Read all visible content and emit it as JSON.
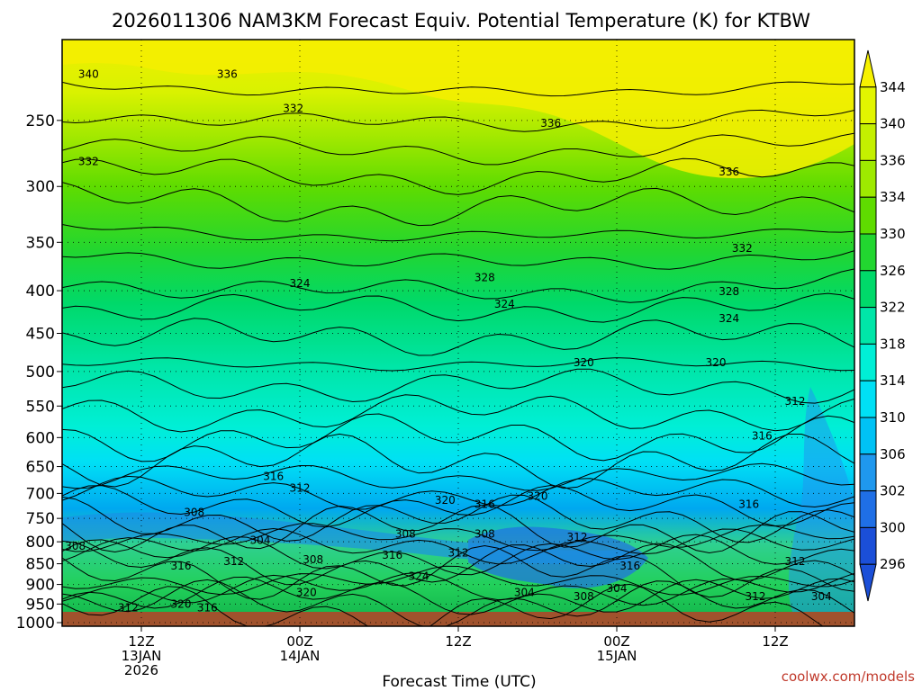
{
  "chart_data": {
    "type": "heatmap",
    "title": "2026011306 NAM3KM Forecast Equiv. Potential Temperature (K) for KTBW",
    "xlabel": "Forecast Time (UTC)",
    "ylabel": "",
    "y_axis": {
      "label_values": [
        "250",
        "300",
        "350",
        "400",
        "450",
        "500",
        "550",
        "600",
        "650",
        "700",
        "750",
        "800",
        "850",
        "900",
        "950",
        "1000"
      ],
      "pressure_values": [
        250,
        300,
        350,
        400,
        450,
        500,
        550,
        600,
        650,
        700,
        750,
        800,
        850,
        900,
        950,
        1000
      ],
      "range_hpa": [
        200,
        1010
      ]
    },
    "x_axis": {
      "range_hours": [
        0,
        60
      ],
      "ticks": [
        {
          "hour": 6,
          "lines": [
            "12Z",
            "13JAN",
            "2026"
          ]
        },
        {
          "hour": 18,
          "lines": [
            "00Z",
            "14JAN"
          ]
        },
        {
          "hour": 30,
          "lines": [
            "12Z"
          ]
        },
        {
          "hour": 42,
          "lines": [
            "00Z",
            "15JAN"
          ]
        },
        {
          "hour": 54,
          "lines": [
            "12Z"
          ]
        }
      ]
    },
    "colorbar": {
      "levels": [
        "344",
        "340",
        "336",
        "334",
        "330",
        "326",
        "322",
        "318",
        "314",
        "310",
        "306",
        "302",
        "300",
        "296"
      ],
      "colors": [
        "#f7f200",
        "#e2f500",
        "#c4f000",
        "#9eea00",
        "#5fdc00",
        "#22d630",
        "#00d96a",
        "#00e6a8",
        "#00efd6",
        "#00e0f5",
        "#00c2f5",
        "#1f98ee",
        "#1f6fe6",
        "#1b4fd8"
      ]
    },
    "contour_labels": [
      {
        "text": "340",
        "hour": 2.0,
        "p": 220
      },
      {
        "text": "336",
        "hour": 12.5,
        "p": 220
      },
      {
        "text": "332",
        "hour": 17.5,
        "p": 242
      },
      {
        "text": "332",
        "hour": 2.0,
        "p": 280
      },
      {
        "text": "336",
        "hour": 37.0,
        "p": 252
      },
      {
        "text": "336",
        "hour": 50.5,
        "p": 288
      },
      {
        "text": "332",
        "hour": 51.5,
        "p": 356
      },
      {
        "text": "324",
        "hour": 18.0,
        "p": 392
      },
      {
        "text": "328",
        "hour": 32.0,
        "p": 386
      },
      {
        "text": "324",
        "hour": 33.5,
        "p": 415
      },
      {
        "text": "328",
        "hour": 50.5,
        "p": 401
      },
      {
        "text": "324",
        "hour": 50.5,
        "p": 432
      },
      {
        "text": "320",
        "hour": 39.5,
        "p": 488
      },
      {
        "text": "320",
        "hour": 49.5,
        "p": 488
      },
      {
        "text": "312",
        "hour": 55.5,
        "p": 543
      },
      {
        "text": "316",
        "hour": 53.0,
        "p": 597
      },
      {
        "text": "316",
        "hour": 16.0,
        "p": 668
      },
      {
        "text": "312",
        "hour": 18.0,
        "p": 690
      },
      {
        "text": "320",
        "hour": 29.0,
        "p": 713
      },
      {
        "text": "316",
        "hour": 32.0,
        "p": 721
      },
      {
        "text": "320",
        "hour": 36.0,
        "p": 705
      },
      {
        "text": "316",
        "hour": 52.0,
        "p": 721
      },
      {
        "text": "308",
        "hour": 10.0,
        "p": 738
      },
      {
        "text": "308",
        "hour": 26.0,
        "p": 783
      },
      {
        "text": "308",
        "hour": 32.0,
        "p": 783
      },
      {
        "text": "312",
        "hour": 39.0,
        "p": 790
      },
      {
        "text": "304",
        "hour": 15.0,
        "p": 797
      },
      {
        "text": "308",
        "hour": 1.0,
        "p": 810
      },
      {
        "text": "316",
        "hour": 9.0,
        "p": 855
      },
      {
        "text": "312",
        "hour": 13.0,
        "p": 845
      },
      {
        "text": "308",
        "hour": 19.0,
        "p": 840
      },
      {
        "text": "316",
        "hour": 25.0,
        "p": 830
      },
      {
        "text": "312",
        "hour": 30.0,
        "p": 825
      },
      {
        "text": "316",
        "hour": 43.0,
        "p": 855
      },
      {
        "text": "312",
        "hour": 55.5,
        "p": 845
      },
      {
        "text": "324",
        "hour": 27.0,
        "p": 880
      },
      {
        "text": "320",
        "hour": 18.5,
        "p": 920
      },
      {
        "text": "304",
        "hour": 35.0,
        "p": 920
      },
      {
        "text": "308",
        "hour": 39.5,
        "p": 930
      },
      {
        "text": "304",
        "hour": 42.0,
        "p": 910
      },
      {
        "text": "312",
        "hour": 52.5,
        "p": 930
      },
      {
        "text": "304",
        "hour": 57.5,
        "p": 930
      },
      {
        "text": "320",
        "hour": 9.0,
        "p": 950
      },
      {
        "text": "316",
        "hour": 11.0,
        "p": 960
      },
      {
        "text": "312",
        "hour": 5.0,
        "p": 960
      }
    ]
  },
  "credit": "coolwx.com/models"
}
